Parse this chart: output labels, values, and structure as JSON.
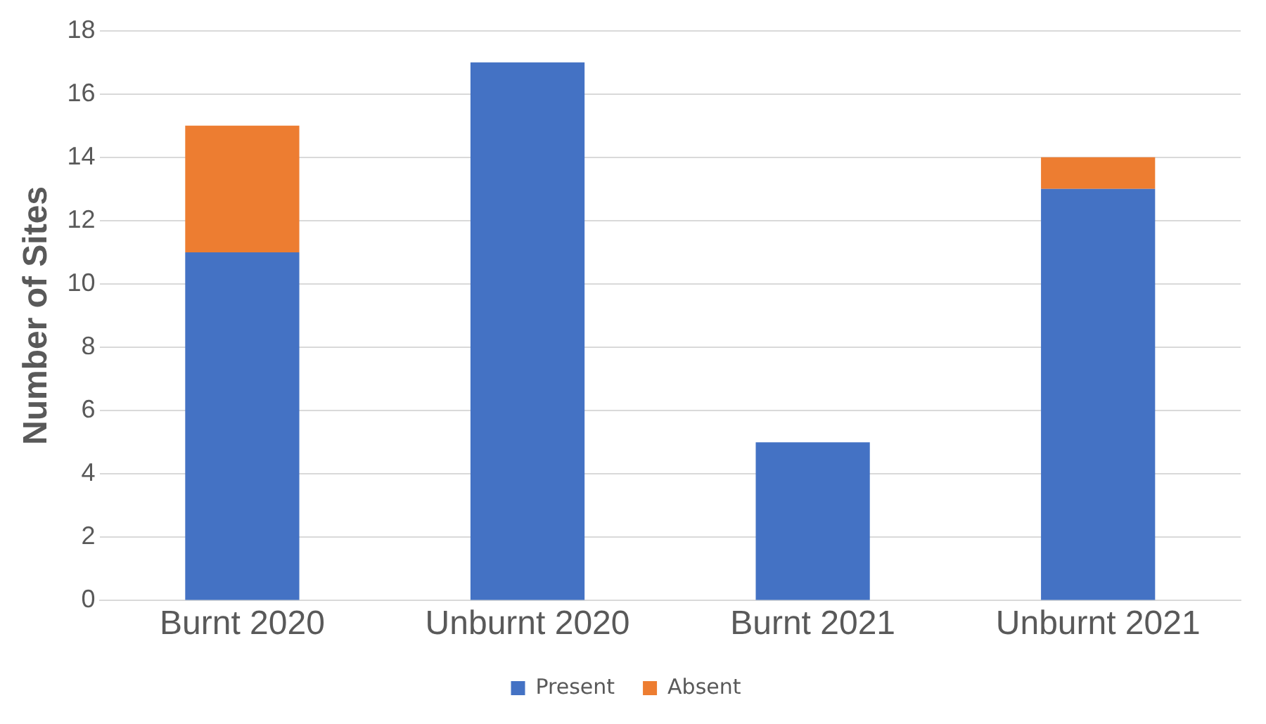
{
  "chart_data": {
    "type": "bar",
    "ylabel": "Number of Sites",
    "categories": [
      "Burnt 2020",
      "Unburnt 2020",
      "Burnt 2021",
      "Unburnt 2021"
    ],
    "stacked": true,
    "series": [
      {
        "name": "Present",
        "color": "#4472c4",
        "values": [
          11,
          17,
          5,
          13
        ]
      },
      {
        "name": "Absent",
        "color": "#ed7d31",
        "values": [
          4,
          0,
          0,
          1
        ]
      }
    ],
    "ylim": [
      0,
      18
    ],
    "yticks": [
      0,
      2,
      4,
      6,
      8,
      10,
      12,
      14,
      16,
      18
    ],
    "grid": "y",
    "legend": "bottom"
  }
}
